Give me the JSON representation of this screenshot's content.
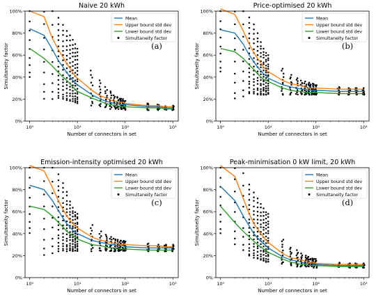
{
  "colors": {
    "mean": "#1f77b4",
    "upper": "#ff7f0e",
    "lower": "#2ca02c",
    "points": "#000000",
    "axis": "#000000",
    "background": "#ffffff"
  },
  "chart_data": [
    {
      "type": "scatter",
      "title": "Naive 20 kWh",
      "panel_label": "(a)",
      "xlabel": "Number of connectors in set",
      "ylabel": "Simultaneity factor",
      "xscale": "log",
      "xlim": [
        0.8,
        1300
      ],
      "ylim": [
        0,
        100
      ],
      "xticks": [
        {
          "v": 1,
          "label": "10⁰"
        },
        {
          "v": 10,
          "label": "10¹"
        },
        {
          "v": 100,
          "label": "10²"
        },
        {
          "v": 1000,
          "label": "10³"
        }
      ],
      "yticks": [
        {
          "v": 0,
          "label": "0%"
        },
        {
          "v": 20,
          "label": "20%"
        },
        {
          "v": 40,
          "label": "40%"
        },
        {
          "v": 60,
          "label": "60%"
        },
        {
          "v": 80,
          "label": "80%"
        },
        {
          "v": 100,
          "label": "100%"
        }
      ],
      "legend": {
        "placement": "top-right",
        "entries": [
          "Mean",
          "Upper bound std dev",
          "Lower bound std dev",
          "Simultaneity factor"
        ]
      },
      "x": [
        1,
        2,
        3,
        4,
        5,
        6,
        7,
        8,
        9,
        10,
        20,
        30,
        40,
        50,
        60,
        70,
        80,
        90,
        100,
        300,
        500,
        700,
        1000
      ],
      "series": [
        {
          "name": "Mean",
          "values": [
            84,
            78,
            65,
            55,
            49,
            44,
            40,
            37,
            35,
            33,
            24,
            20,
            18,
            17,
            16,
            16,
            15,
            15,
            15,
            13,
            13,
            12,
            12
          ]
        },
        {
          "name": "Upper bound std dev",
          "values": [
            100,
            95,
            75,
            65,
            58,
            52,
            48,
            44,
            41,
            39,
            28,
            23,
            21,
            19,
            18,
            18,
            17,
            17,
            16,
            14,
            14,
            13,
            13
          ]
        },
        {
          "name": "Lower bound std dev",
          "values": [
            66,
            57,
            50,
            44,
            40,
            37,
            34,
            31,
            29,
            27,
            21,
            18,
            16,
            15,
            14,
            14,
            13,
            13,
            13,
            12,
            12,
            11,
            11
          ]
        }
      ],
      "scatter": {
        "name": "Simultaneity factor",
        "x": [
          1,
          2,
          3,
          4,
          5,
          6,
          7,
          8,
          9,
          10,
          20,
          30,
          40,
          50,
          60,
          70,
          80,
          90,
          100,
          300,
          500,
          700,
          1000
        ],
        "ymin": [
          40,
          20,
          20,
          21,
          20,
          19,
          18,
          18,
          17,
          16,
          14,
          13,
          12,
          11,
          11,
          11,
          11,
          11,
          10,
          10,
          10,
          10,
          10
        ],
        "ymax": [
          100,
          100,
          100,
          94,
          88,
          82,
          78,
          74,
          70,
          66,
          46,
          37,
          31,
          27,
          24,
          22,
          21,
          20,
          19,
          16,
          15,
          14,
          14
        ]
      }
    },
    {
      "type": "scatter",
      "title": "Price-optimised 20 kWh",
      "panel_label": "(b)",
      "xlabel": "Number of connectors in set",
      "ylabel": "Simultaneity factor",
      "xscale": "log",
      "xlim": [
        0.8,
        1300
      ],
      "ylim": [
        0,
        100
      ],
      "xticks": [
        {
          "v": 1,
          "label": "10⁰"
        },
        {
          "v": 10,
          "label": "10¹"
        },
        {
          "v": 100,
          "label": "10²"
        },
        {
          "v": 1000,
          "label": "10³"
        }
      ],
      "yticks": [
        {
          "v": 0,
          "label": "0%"
        },
        {
          "v": 20,
          "label": "20%"
        },
        {
          "v": 40,
          "label": "40%"
        },
        {
          "v": 60,
          "label": "60%"
        },
        {
          "v": 80,
          "label": "80%"
        },
        {
          "v": 100,
          "label": "100%"
        }
      ],
      "legend": {
        "placement": "top-right",
        "entries": [
          "Mean",
          "Upper bound std dev",
          "Lower bound std dev",
          "Simultaneity factor"
        ]
      },
      "x": [
        1,
        2,
        3,
        4,
        5,
        6,
        7,
        8,
        9,
        10,
        20,
        30,
        40,
        50,
        60,
        70,
        80,
        90,
        100,
        300,
        500,
        700,
        1000
      ],
      "series": [
        {
          "name": "Mean",
          "values": [
            83,
            80,
            70,
            60,
            54,
            49,
            46,
            43,
            41,
            39,
            33,
            31,
            30,
            29,
            29,
            28,
            28,
            28,
            28,
            27,
            27,
            27,
            27
          ]
        },
        {
          "name": "Upper bound std dev",
          "values": [
            102,
            97,
            82,
            70,
            62,
            57,
            53,
            49,
            47,
            45,
            37,
            34,
            33,
            32,
            31,
            30,
            30,
            30,
            30,
            29,
            29,
            29,
            29
          ]
        },
        {
          "name": "Lower bound std dev",
          "values": [
            66,
            63,
            57,
            51,
            47,
            43,
            40,
            38,
            37,
            36,
            30,
            28,
            27,
            27,
            26,
            26,
            26,
            26,
            26,
            25,
            25,
            25,
            25
          ]
        }
      ],
      "scatter": {
        "name": "Simultaneity factor",
        "x": [
          1,
          2,
          3,
          4,
          5,
          6,
          7,
          8,
          9,
          10,
          20,
          30,
          40,
          50,
          60,
          70,
          80,
          90,
          100,
          300,
          500,
          700,
          1000
        ],
        "ymin": [
          45,
          20,
          22,
          25,
          25,
          24,
          24,
          24,
          24,
          24,
          24,
          24,
          24,
          24,
          24,
          24,
          24,
          24,
          24,
          24,
          24,
          24,
          24
        ],
        "ymax": [
          100,
          100,
          100,
          95,
          88,
          80,
          72,
          66,
          62,
          60,
          48,
          42,
          39,
          37,
          36,
          35,
          34,
          34,
          33,
          31,
          30,
          30,
          30
        ]
      }
    },
    {
      "type": "scatter",
      "title": "Emission-intensity optimised 20 kWh",
      "panel_label": "(c)",
      "xlabel": "Number of connectors in set",
      "ylabel": "Simultaneity factor",
      "xscale": "log",
      "xlim": [
        0.8,
        1300
      ],
      "ylim": [
        0,
        100
      ],
      "xticks": [
        {
          "v": 1,
          "label": "10⁰"
        },
        {
          "v": 10,
          "label": "10¹"
        },
        {
          "v": 100,
          "label": "10²"
        },
        {
          "v": 1000,
          "label": "10³"
        }
      ],
      "yticks": [
        {
          "v": 0,
          "label": "0%"
        },
        {
          "v": 20,
          "label": "20%"
        },
        {
          "v": 40,
          "label": "40%"
        },
        {
          "v": 60,
          "label": "60%"
        },
        {
          "v": 80,
          "label": "80%"
        },
        {
          "v": 100,
          "label": "100%"
        }
      ],
      "legend": {
        "placement": "top-right",
        "entries": [
          "Mean",
          "Upper bound std dev",
          "Lower bound std dev",
          "Simultaneity factor"
        ]
      },
      "x": [
        1,
        2,
        3,
        4,
        5,
        6,
        7,
        8,
        9,
        10,
        20,
        30,
        40,
        50,
        60,
        70,
        80,
        90,
        100,
        300,
        500,
        700,
        1000
      ],
      "series": [
        {
          "name": "Mean",
          "values": [
            84,
            80,
            70,
            61,
            54,
            49,
            46,
            43,
            41,
            40,
            34,
            32,
            31,
            30,
            30,
            29,
            29,
            29,
            28,
            27,
            27,
            27,
            27
          ]
        },
        {
          "name": "Upper bound std dev",
          "values": [
            102,
            97,
            82,
            70,
            62,
            56,
            52,
            49,
            47,
            45,
            37,
            34,
            33,
            32,
            31,
            31,
            30,
            30,
            30,
            29,
            29,
            28,
            28
          ]
        },
        {
          "name": "Lower bound std dev",
          "values": [
            65,
            62,
            56,
            50,
            46,
            42,
            40,
            38,
            37,
            35,
            30,
            29,
            28,
            27,
            27,
            27,
            26,
            26,
            26,
            25,
            25,
            25,
            25
          ]
        }
      ],
      "scatter": {
        "name": "Simultaneity factor",
        "x": [
          1,
          2,
          3,
          4,
          5,
          6,
          7,
          8,
          9,
          10,
          20,
          30,
          40,
          50,
          60,
          70,
          80,
          90,
          100,
          300,
          500,
          700,
          1000
        ],
        "ymin": [
          40,
          20,
          22,
          24,
          24,
          24,
          24,
          24,
          24,
          24,
          24,
          24,
          24,
          24,
          24,
          24,
          24,
          24,
          24,
          24,
          24,
          24,
          24
        ],
        "ymax": [
          100,
          100,
          100,
          94,
          86,
          78,
          70,
          64,
          60,
          58,
          48,
          42,
          39,
          37,
          36,
          35,
          34,
          34,
          33,
          31,
          30,
          30,
          30
        ]
      }
    },
    {
      "type": "scatter",
      "title": "Peak-minimisation 0 kW limit, 20 kWh",
      "panel_label": "(d)",
      "xlabel": "Number of connectors in set",
      "ylabel": "Simultaneity factor",
      "xscale": "log",
      "xlim": [
        0.8,
        1300
      ],
      "ylim": [
        0,
        100
      ],
      "xticks": [
        {
          "v": 1,
          "label": "10⁰"
        },
        {
          "v": 10,
          "label": "10¹"
        },
        {
          "v": 100,
          "label": "10²"
        },
        {
          "v": 1000,
          "label": "10³"
        }
      ],
      "yticks": [
        {
          "v": 0,
          "label": "0%"
        },
        {
          "v": 20,
          "label": "20%"
        },
        {
          "v": 40,
          "label": "40%"
        },
        {
          "v": 60,
          "label": "60%"
        },
        {
          "v": 80,
          "label": "80%"
        },
        {
          "v": 100,
          "label": "100%"
        }
      ],
      "legend": {
        "placement": "top-right",
        "entries": [
          "Mean",
          "Upper bound std dev",
          "Lower bound std dev",
          "Simultaneity factor"
        ]
      },
      "x": [
        1,
        2,
        3,
        4,
        5,
        6,
        7,
        8,
        9,
        10,
        20,
        30,
        40,
        50,
        60,
        70,
        80,
        90,
        100,
        300,
        500,
        700,
        1000
      ],
      "series": [
        {
          "name": "Mean",
          "values": [
            83,
            70,
            56,
            47,
            40,
            36,
            33,
            31,
            29,
            27,
            19,
            16,
            15,
            14,
            13,
            13,
            13,
            12,
            12,
            11,
            11,
            11,
            11
          ]
        },
        {
          "name": "Upper bound std dev",
          "values": [
            102,
            92,
            72,
            58,
            49,
            44,
            40,
            37,
            34,
            32,
            22,
            18,
            17,
            16,
            15,
            14,
            14,
            14,
            13,
            12,
            12,
            12,
            12
          ]
        },
        {
          "name": "Lower bound std dev",
          "values": [
            65,
            50,
            42,
            37,
            33,
            30,
            28,
            26,
            25,
            23,
            17,
            14,
            13,
            12,
            12,
            11,
            11,
            11,
            11,
            10,
            10,
            10,
            10
          ]
        }
      ],
      "scatter": {
        "name": "Simultaneity factor",
        "x": [
          1,
          2,
          3,
          4,
          5,
          6,
          7,
          8,
          9,
          10,
          20,
          30,
          40,
          50,
          60,
          70,
          80,
          90,
          100,
          300,
          500,
          700,
          1000
        ],
        "ymin": [
          40,
          30,
          25,
          20,
          18,
          17,
          16,
          15,
          14,
          14,
          12,
          11,
          10,
          10,
          10,
          10,
          10,
          9,
          9,
          9,
          9,
          9,
          9
        ],
        " ymax": [
          100,
          100,
          95,
          85,
          78,
          72,
          67,
          63,
          60,
          58,
          35,
          28,
          25,
          22,
          20,
          19,
          18,
          17,
          17,
          14,
          13,
          13,
          13
        ]
      }
    }
  ]
}
